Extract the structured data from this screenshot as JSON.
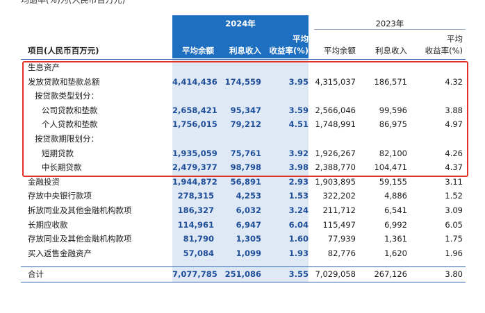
{
  "top_fragment": "均逾率(%)为(人民币百万元)",
  "header": {
    "year_2024": "2024年",
    "year_2023": "2023年",
    "item_col": "项目(人民币百万元)",
    "avg_balance": "平均余额",
    "interest_income": "利息收入",
    "avg_yield_line1": "平均",
    "avg_yield_line2": "收益率(%)"
  },
  "rows": [
    {
      "label": "生息资产",
      "indent": 0,
      "section": true,
      "v2024": [
        "",
        "",
        ""
      ],
      "v2023": [
        "",
        "",
        ""
      ]
    },
    {
      "label": "发放贷款和垫款总额",
      "indent": 0,
      "v2024": [
        "4,414,436",
        "174,559",
        "3.95"
      ],
      "v2023": [
        "4,315,037",
        "186,571",
        "4.32"
      ]
    },
    {
      "label": "按贷款类型划分：",
      "indent": 1,
      "v2024": [
        "",
        "",
        ""
      ],
      "v2023": [
        "",
        "",
        ""
      ]
    },
    {
      "label": "公司贷款和垫款",
      "indent": 2,
      "v2024": [
        "2,658,421",
        "95,347",
        "3.59"
      ],
      "v2023": [
        "2,566,046",
        "99,596",
        "3.88"
      ]
    },
    {
      "label": "个人贷款和垫款",
      "indent": 2,
      "v2024": [
        "1,756,015",
        "79,212",
        "4.51"
      ],
      "v2023": [
        "1,748,991",
        "86,975",
        "4.97"
      ]
    },
    {
      "label": "按贷款期限划分：",
      "indent": 1,
      "v2024": [
        "",
        "",
        ""
      ],
      "v2023": [
        "",
        "",
        ""
      ]
    },
    {
      "label": "短期贷款",
      "indent": 2,
      "v2024": [
        "1,935,059",
        "75,761",
        "3.92"
      ],
      "v2023": [
        "1,926,267",
        "82,100",
        "4.26"
      ]
    },
    {
      "label": "中长期贷款",
      "indent": 2,
      "v2024": [
        "2,479,377",
        "98,798",
        "3.98"
      ],
      "v2023": [
        "2,388,770",
        "104,471",
        "4.37"
      ]
    },
    {
      "label": "金融投资",
      "indent": 0,
      "v2024": [
        "1,944,872",
        "56,891",
        "2.93"
      ],
      "v2023": [
        "1,903,895",
        "59,155",
        "3.11"
      ]
    },
    {
      "label": "存放中央银行款项",
      "indent": 0,
      "v2024": [
        "278,315",
        "4,253",
        "1.53"
      ],
      "v2023": [
        "322,202",
        "4,886",
        "1.52"
      ]
    },
    {
      "label": "拆放同业及其他金融机构款项",
      "indent": 0,
      "v2024": [
        "186,327",
        "6,032",
        "3.24"
      ],
      "v2023": [
        "211,712",
        "6,541",
        "3.09"
      ]
    },
    {
      "label": "长期应收款",
      "indent": 0,
      "v2024": [
        "114,961",
        "6,947",
        "6.04"
      ],
      "v2023": [
        "115,497",
        "6,992",
        "6.05"
      ]
    },
    {
      "label": "存放同业及其他金融机构款项",
      "indent": 0,
      "v2024": [
        "81,790",
        "1,305",
        "1.60"
      ],
      "v2023": [
        "77,939",
        "1,361",
        "1.75"
      ]
    },
    {
      "label": "买入返售金融资产",
      "indent": 0,
      "v2024": [
        "57,084",
        "1,099",
        "1.93"
      ],
      "v2023": [
        "82,776",
        "1,620",
        "1.96"
      ]
    }
  ],
  "total": {
    "label": "合计",
    "v2024": [
      "7,077,785",
      "251,086",
      "3.55"
    ],
    "v2023": [
      "7,029,058",
      "267,126",
      "3.80"
    ]
  }
}
